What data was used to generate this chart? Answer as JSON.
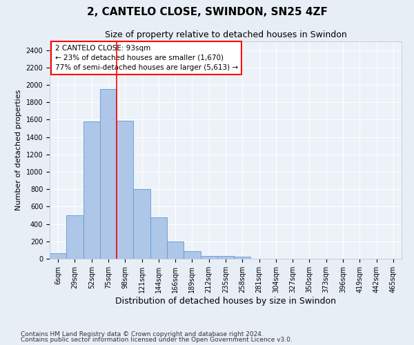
{
  "title1": "2, CANTELO CLOSE, SWINDON, SN25 4ZF",
  "title2": "Size of property relative to detached houses in Swindon",
  "xlabel": "Distribution of detached houses by size in Swindon",
  "ylabel": "Number of detached properties",
  "categories": [
    "6sqm",
    "29sqm",
    "52sqm",
    "75sqm",
    "98sqm",
    "121sqm",
    "144sqm",
    "166sqm",
    "189sqm",
    "212sqm",
    "235sqm",
    "258sqm",
    "281sqm",
    "304sqm",
    "327sqm",
    "350sqm",
    "373sqm",
    "396sqm",
    "419sqm",
    "442sqm",
    "465sqm"
  ],
  "bar_heights": [
    60,
    500,
    1580,
    1950,
    1590,
    800,
    475,
    195,
    90,
    35,
    28,
    20,
    0,
    0,
    0,
    0,
    0,
    0,
    0,
    0,
    0
  ],
  "bar_color": "#aec6e8",
  "bar_edgecolor": "#5b9bd5",
  "annotation_line1": "2 CANTELO CLOSE: 93sqm",
  "annotation_line2": "← 23% of detached houses are smaller (1,670)",
  "annotation_line3": "77% of semi-detached houses are larger (5,613) →",
  "vline_x": 3.5,
  "vline_color": "red",
  "ylim": [
    0,
    2500
  ],
  "yticks": [
    0,
    200,
    400,
    600,
    800,
    1000,
    1200,
    1400,
    1600,
    1800,
    2000,
    2200,
    2400
  ],
  "footer1": "Contains HM Land Registry data © Crown copyright and database right 2024.",
  "footer2": "Contains public sector information licensed under the Open Government Licence v3.0.",
  "bg_color": "#e8eef5",
  "plot_bg_color": "#edf2f9",
  "title1_fontsize": 11,
  "title2_fontsize": 9,
  "xlabel_fontsize": 9,
  "ylabel_fontsize": 8,
  "tick_fontsize": 7,
  "footer_fontsize": 6.5,
  "annotation_fontsize": 7.5
}
